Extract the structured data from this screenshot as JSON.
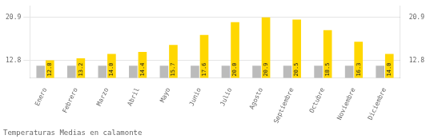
{
  "chart_data": {
    "type": "bar",
    "title": "Temperaturas Medias en calamonte",
    "categories": [
      "Enero",
      "Febrero",
      "Marzo",
      "Abril",
      "Mayo",
      "Junio",
      "Julio",
      "Agosto",
      "Septiembre",
      "Octubre",
      "Noviembre",
      "Diciembre"
    ],
    "series": [
      {
        "color": "#BBBBBB",
        "values": [
          11.8,
          11.8,
          11.8,
          11.8,
          11.8,
          11.8,
          11.8,
          11.8,
          11.8,
          11.8,
          11.8,
          11.8
        ]
      },
      {
        "color": "#FFD700",
        "values": [
          12.8,
          13.2,
          14.0,
          14.4,
          15.7,
          17.6,
          20.0,
          20.9,
          20.5,
          18.5,
          16.3,
          14.0
        ],
        "data_labels": true,
        "value_labels": [
          "12.8",
          "13.2",
          "14.0",
          "14.4",
          "15.7",
          "17.6",
          "20.0",
          "20.9",
          "20.5",
          "18.5",
          "16.3",
          "14.0"
        ]
      }
    ],
    "ylim": [
      9.5,
      23.0
    ],
    "yticks": [
      12.8,
      20.9
    ],
    "y2lim": [
      9.5,
      23.0
    ],
    "y2ticks": [
      12.8,
      20.9
    ],
    "grid": true
  }
}
